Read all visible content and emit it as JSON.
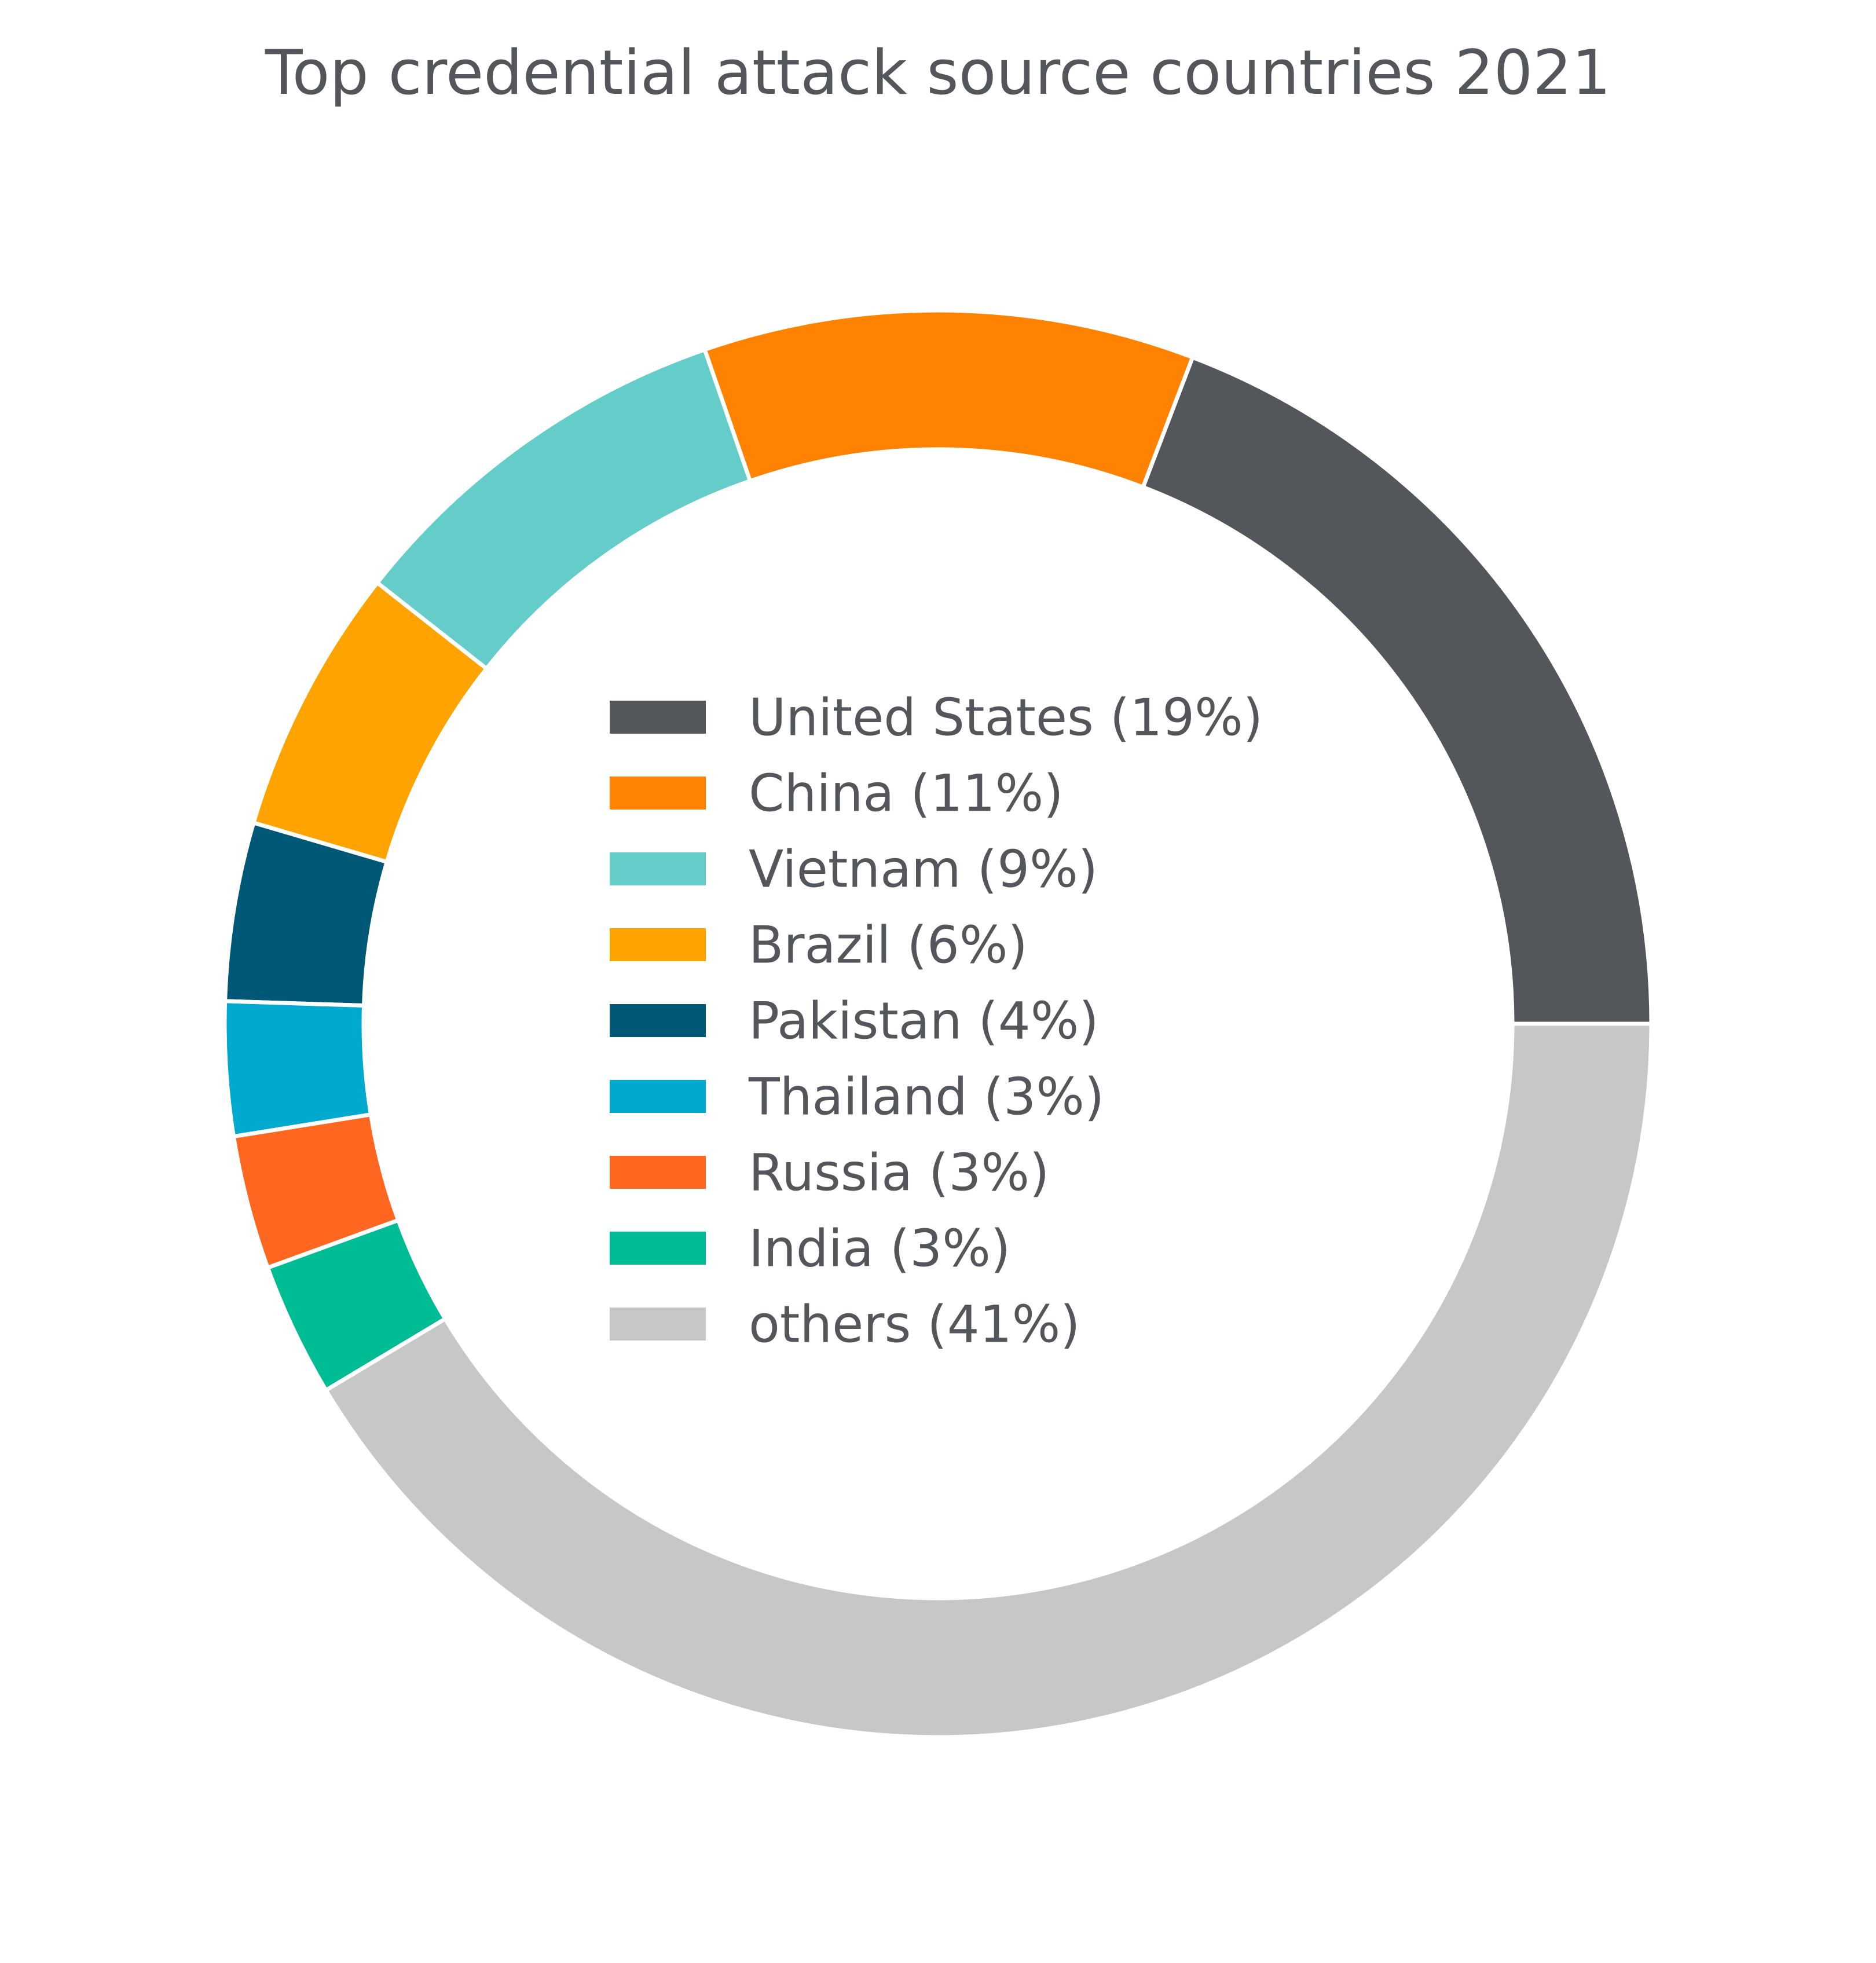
{
  "chart_data": {
    "type": "pie",
    "title": "Top credential attack source countries 2021",
    "legend_placement": "center",
    "slices": [
      {
        "label": "United States (19%)",
        "value": 19,
        "color": "#53565a"
      },
      {
        "label": "China (11%)",
        "value": 11,
        "color": "#ff8200"
      },
      {
        "label": "Vietnam (9%)",
        "value": 9,
        "color": "#64ccc9"
      },
      {
        "label": "Brazil (6%)",
        "value": 6,
        "color": "#ffa300"
      },
      {
        "label": "Pakistan (4%)",
        "value": 4,
        "color": "#005776"
      },
      {
        "label": "Thailand (3%)",
        "value": 3,
        "color": "#00a9ce"
      },
      {
        "label": "Russia (3%)",
        "value": 3,
        "color": "#ff6720"
      },
      {
        "label": "India (3%)",
        "value": 3,
        "color": "#00bc94"
      },
      {
        "label": "others (41%)",
        "value": 41,
        "color": "#c7c7c6"
      }
    ]
  }
}
